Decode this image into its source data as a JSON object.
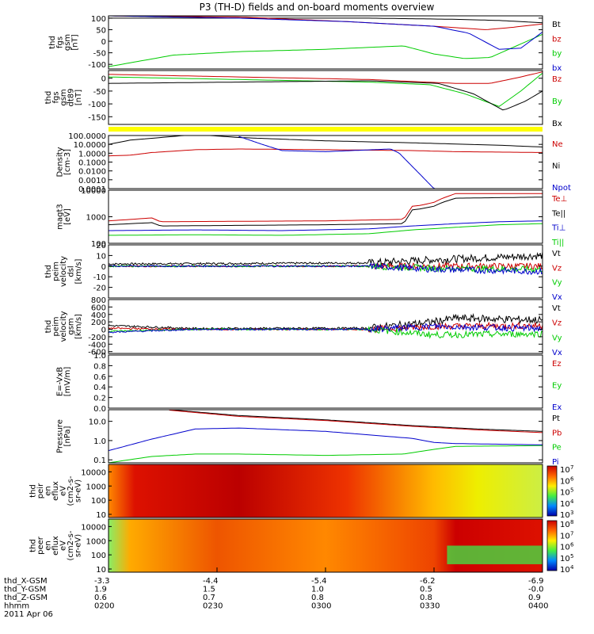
{
  "title": "P3 (TH-D) fields and on-board moments overview",
  "chart_data": [
    {
      "id": "fgs",
      "type": "line",
      "ylabel": [
        "thd",
        "fgs",
        "gsm",
        "[nT]"
      ],
      "ylim": [
        -120,
        110
      ],
      "yticks": [
        "100",
        "50",
        "0",
        "-50",
        "-100"
      ],
      "ytick_values": [
        100,
        50,
        0,
        -50,
        -100
      ],
      "series": [
        {
          "name": "Bt",
          "color": "#000000",
          "x": [
            0,
            0.3,
            0.6,
            0.8,
            0.9,
            1
          ],
          "values": [
            100,
            100,
            100,
            95,
            90,
            80
          ]
        },
        {
          "name": "bz",
          "color": "#cc0000",
          "x": [
            0,
            0.3,
            0.55,
            0.75,
            0.87,
            0.93,
            1
          ],
          "values": [
            110,
            105,
            85,
            65,
            50,
            60,
            75
          ]
        },
        {
          "name": "by",
          "color": "#00cc00",
          "x": [
            0,
            0.15,
            0.3,
            0.5,
            0.68,
            0.75,
            0.82,
            0.88,
            0.94,
            1
          ],
          "values": [
            -110,
            -60,
            -45,
            -35,
            -20,
            -55,
            -75,
            -70,
            -20,
            30
          ]
        },
        {
          "name": "bx",
          "color": "#0000cc",
          "x": [
            0,
            0.3,
            0.55,
            0.75,
            0.83,
            0.9,
            0.95,
            1
          ],
          "values": [
            110,
            100,
            85,
            65,
            35,
            -35,
            -30,
            40
          ]
        }
      ]
    },
    {
      "id": "fgm",
      "type": "line",
      "ylabel": [
        "thd",
        "fgs",
        "gsm",
        "dt89",
        "[nT]"
      ],
      "ylim": [
        -180,
        30
      ],
      "yticks": [
        "0",
        "-50",
        "-100",
        "-150"
      ],
      "ytick_values": [
        0,
        -50,
        -100,
        -150
      ],
      "series": [
        {
          "name": "Bz",
          "color": "#cc0000",
          "x": [
            0,
            0.3,
            0.6,
            0.8,
            0.88,
            0.95,
            1
          ],
          "values": [
            15,
            5,
            -5,
            -20,
            -20,
            5,
            25
          ]
        },
        {
          "name": "By",
          "color": "#00cc00",
          "x": [
            0,
            0.3,
            0.6,
            0.74,
            0.82,
            0.9,
            0.95,
            1
          ],
          "values": [
            5,
            -5,
            -15,
            -25,
            -60,
            -110,
            -50,
            20
          ]
        },
        {
          "name": "Bx",
          "color": "#000000",
          "x": [
            0,
            0.3,
            0.6,
            0.76,
            0.84,
            0.91,
            0.96,
            1
          ],
          "values": [
            -20,
            -15,
            -10,
            -20,
            -60,
            -125,
            -90,
            -50
          ]
        }
      ]
    },
    {
      "id": "density",
      "type": "line",
      "scale": "log",
      "ylabel": [
        "Density",
        "[cm-3]"
      ],
      "ylim": [
        0.0001,
        100
      ],
      "yticks": [
        "100.0000",
        "10.0000",
        "1.0000",
        "0.1000",
        "0.0100",
        "0.0010",
        "0.0001"
      ],
      "ytick_values": [
        100,
        10,
        1,
        0.1,
        0.01,
        0.001,
        0.0001
      ],
      "series": [
        {
          "name": "Ne",
          "color": "#cc0000",
          "x": [
            0,
            0.05,
            0.1,
            0.2,
            0.3,
            0.5,
            0.7,
            0.8,
            1
          ],
          "values": [
            0.5,
            0.6,
            1.2,
            2.5,
            3,
            2.5,
            2,
            1.5,
            1.2
          ]
        },
        {
          "name": "Ni",
          "color": "#000000",
          "x": [
            0,
            0.05,
            0.15,
            0.2,
            0.3,
            0.5,
            0.7,
            0.9,
            1
          ],
          "values": [
            10,
            30,
            80,
            130,
            60,
            25,
            15,
            8,
            5
          ]
        },
        {
          "name": "Npot",
          "color": "#0000cc",
          "x": [
            0.3,
            0.36,
            0.4,
            0.5,
            0.65,
            0.67,
            0.75,
            0.78
          ],
          "values": [
            80,
            8,
            2,
            1.5,
            3,
            1,
            0.0001,
            0.0001
          ]
        }
      ]
    },
    {
      "id": "magt3",
      "type": "line",
      "scale": "log",
      "ylabel": [
        "magt3",
        "[eV]"
      ],
      "ylim": [
        100,
        10000
      ],
      "yticks": [
        "10000",
        "1000",
        "100"
      ],
      "ytick_values": [
        10000,
        1000,
        100
      ],
      "series": [
        {
          "name": "Te⊥",
          "color": "#cc0000",
          "x": [
            0,
            0.1,
            0.12,
            0.5,
            0.68,
            0.7,
            0.72,
            0.75,
            0.77,
            0.8,
            1
          ],
          "values": [
            700,
            900,
            650,
            700,
            800,
            2500,
            2700,
            3500,
            5000,
            7500,
            7500
          ]
        },
        {
          "name": "Te||",
          "color": "#000000",
          "x": [
            0,
            0.1,
            0.12,
            0.5,
            0.68,
            0.7,
            0.72,
            0.75,
            0.77,
            0.8,
            1
          ],
          "values": [
            500,
            600,
            450,
            500,
            550,
            1800,
            2000,
            2500,
            3500,
            5000,
            5500
          ]
        },
        {
          "name": "Ti⊥",
          "color": "#0000cc",
          "x": [
            0,
            0.2,
            0.4,
            0.6,
            0.7,
            0.8,
            0.9,
            1
          ],
          "values": [
            300,
            320,
            300,
            350,
            450,
            550,
            650,
            700
          ]
        },
        {
          "name": "Ti||",
          "color": "#00cc00",
          "x": [
            0,
            0.2,
            0.4,
            0.6,
            0.7,
            0.8,
            0.9,
            1
          ],
          "values": [
            200,
            210,
            200,
            230,
            320,
            400,
            500,
            550
          ]
        }
      ]
    },
    {
      "id": "vel_dsl",
      "type": "line",
      "noisy": true,
      "ylabel": [
        "thd",
        "peim",
        "velocity",
        "dsl",
        "[km/s]"
      ],
      "ylim": [
        -30,
        20
      ],
      "yticks": [
        "20",
        "10",
        "0",
        "-10",
        "-20"
      ],
      "ytick_values": [
        20,
        10,
        0,
        -10,
        -20
      ],
      "series": [
        {
          "name": "Vt",
          "color": "#000000",
          "x": [
            0,
            0.6,
            0.75,
            1
          ],
          "values": [
            2,
            3,
            6,
            10
          ]
        },
        {
          "name": "Vz",
          "color": "#cc0000",
          "x": [
            0,
            0.6,
            0.75,
            1
          ],
          "values": [
            0,
            0,
            0,
            0
          ]
        },
        {
          "name": "Vy",
          "color": "#00cc00",
          "x": [
            0,
            0.6,
            0.75,
            1
          ],
          "values": [
            0,
            0,
            -2,
            -3
          ]
        },
        {
          "name": "Vx",
          "color": "#0000cc",
          "x": [
            0,
            0.6,
            0.75,
            1
          ],
          "values": [
            0,
            0,
            -3,
            -5
          ]
        }
      ]
    },
    {
      "id": "vel_gsm",
      "type": "line",
      "noisy": true,
      "ylabel": [
        "thd",
        "peim",
        "velocity",
        "gsm",
        "[km/s]"
      ],
      "ylim": [
        -650,
        800
      ],
      "yticks": [
        "800",
        "600",
        "400",
        "200",
        "0",
        "-200",
        "-400",
        "-600"
      ],
      "ytick_values": [
        800,
        600,
        400,
        200,
        0,
        -200,
        -400,
        -600
      ],
      "series": [
        {
          "name": "Vt",
          "color": "#000000",
          "x": [
            0,
            0.1,
            0.2,
            0.6,
            0.75,
            0.8,
            1
          ],
          "values": [
            100,
            60,
            20,
            30,
            200,
            300,
            250
          ]
        },
        {
          "name": "Vz",
          "color": "#cc0000",
          "x": [
            0,
            0.1,
            0.2,
            0.6,
            0.75,
            1
          ],
          "values": [
            30,
            10,
            0,
            0,
            80,
            100
          ]
        },
        {
          "name": "Vy",
          "color": "#00cc00",
          "x": [
            0,
            0.1,
            0.2,
            0.6,
            0.75,
            1
          ],
          "values": [
            -50,
            -30,
            0,
            0,
            -150,
            -120
          ]
        },
        {
          "name": "Vx",
          "color": "#0000cc",
          "x": [
            0,
            0.1,
            0.2,
            0.6,
            0.75,
            1
          ],
          "values": [
            -80,
            -40,
            0,
            0,
            80,
            20
          ]
        }
      ]
    },
    {
      "id": "efield",
      "type": "line",
      "ylabel": [
        "E=-VxB",
        "[mV/m]"
      ],
      "ylim": [
        0,
        1
      ],
      "yticks": [
        "1.0",
        "0.8",
        "0.6",
        "0.4",
        "0.2",
        "0.0"
      ],
      "ytick_values": [
        1,
        0.8,
        0.6,
        0.4,
        0.2,
        0
      ],
      "series": [
        {
          "name": "Ez",
          "color": "#cc0000",
          "x": [],
          "values": []
        },
        {
          "name": "Ey",
          "color": "#00cc00",
          "x": [],
          "values": []
        },
        {
          "name": "Ex",
          "color": "#0000cc",
          "x": [],
          "values": []
        }
      ]
    },
    {
      "id": "pressure",
      "type": "line",
      "scale": "log",
      "ylabel": [
        "Pressure",
        "[nPa]"
      ],
      "ylim": [
        0.07,
        40
      ],
      "yticks": [
        "10.0",
        "1.0",
        "0.1"
      ],
      "ytick_values": [
        10,
        1,
        0.1
      ],
      "series": [
        {
          "name": "Pt",
          "color": "#000000",
          "x": [
            0.14,
            0.3,
            0.5,
            0.7,
            0.85,
            1
          ],
          "values": [
            40,
            20,
            12,
            6,
            4,
            3
          ]
        },
        {
          "name": "Pb",
          "color": "#cc0000",
          "x": [
            0.14,
            0.3,
            0.5,
            0.7,
            0.85,
            1
          ],
          "values": [
            38,
            18,
            11,
            5.5,
            3.6,
            2.6
          ]
        },
        {
          "name": "Pe",
          "color": "#00cc00",
          "x": [
            0,
            0.1,
            0.2,
            0.3,
            0.5,
            0.68,
            0.75,
            0.8,
            1
          ],
          "values": [
            0.07,
            0.15,
            0.2,
            0.2,
            0.17,
            0.2,
            0.35,
            0.5,
            0.55
          ]
        },
        {
          "name": "Pi",
          "color": "#0000cc",
          "x": [
            0,
            0.1,
            0.2,
            0.3,
            0.5,
            0.7,
            0.75,
            0.8,
            1
          ],
          "values": [
            0.3,
            1.2,
            4,
            4.5,
            3,
            1.3,
            0.8,
            0.7,
            0.6
          ]
        }
      ]
    },
    {
      "id": "peir",
      "type": "heatmap",
      "ylabel": [
        "thd",
        "peir",
        "en",
        "eflux",
        "eV",
        "(cm2-s-",
        "sr-eV)"
      ],
      "yticks": [
        "10000",
        "1000",
        "100",
        "10"
      ],
      "ytick_values": [
        10000,
        1000,
        100,
        10
      ],
      "colorbar_labels": [
        "10",
        "10",
        "10",
        "10",
        "10"
      ],
      "colorbar_exponents": [
        "7",
        "6",
        "5",
        "4",
        "3"
      ]
    },
    {
      "id": "peer",
      "type": "heatmap",
      "ylabel": [
        "thd",
        "peer",
        "en",
        "eflux",
        "eV",
        "(cm2-s-",
        "sr-eV)"
      ],
      "yticks": [
        "10000",
        "1000",
        "100",
        "10"
      ],
      "ytick_values": [
        10000,
        1000,
        100,
        10
      ],
      "colorbar_labels": [
        "10",
        "10",
        "10",
        "10",
        "10"
      ],
      "colorbar_exponents": [
        "8",
        "7",
        "6",
        "5",
        "4"
      ]
    }
  ],
  "axis_table": {
    "rows": [
      {
        "label": "thd_X-GSM",
        "values": [
          "-3.3",
          "-4.4",
          "-5.4",
          "-6.2",
          "-6.9"
        ]
      },
      {
        "label": "thd_Y-GSM",
        "values": [
          "1.9",
          "1.5",
          "1.0",
          "0.5",
          "-0.0"
        ]
      },
      {
        "label": "thd_Z-GSM",
        "values": [
          "0.6",
          "0.7",
          "0.8",
          "0.8",
          "0.9"
        ]
      },
      {
        "label": "hhmm",
        "values": [
          "0200",
          "0230",
          "0300",
          "0330",
          "0400"
        ]
      }
    ],
    "date": "2011 Apr 06"
  }
}
